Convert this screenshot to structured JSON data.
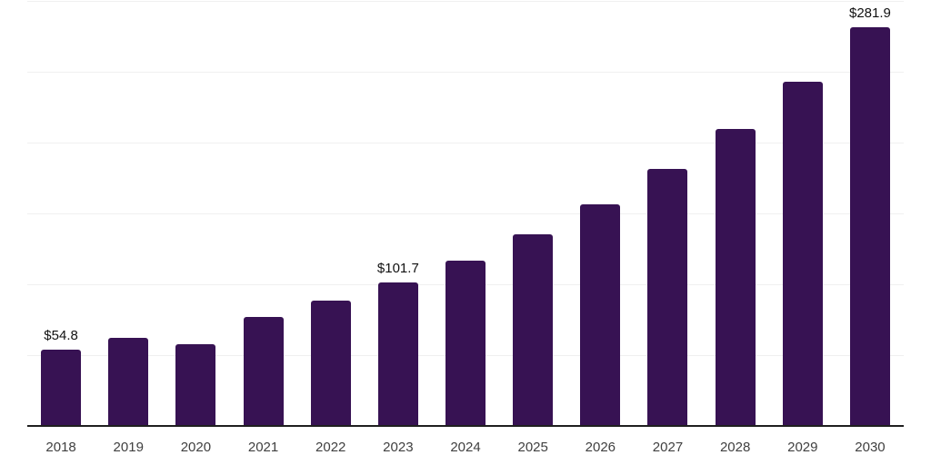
{
  "chart_data": {
    "type": "bar",
    "title": "",
    "xlabel": "",
    "ylabel": "",
    "categories": [
      "2018",
      "2019",
      "2020",
      "2021",
      "2022",
      "2023",
      "2024",
      "2025",
      "2026",
      "2027",
      "2028",
      "2029",
      "2030"
    ],
    "values": [
      54.8,
      63.0,
      58.1,
      77.3,
      89.0,
      101.7,
      117.6,
      136.1,
      157.4,
      182.1,
      210.6,
      243.6,
      281.9
    ],
    "data_labels": [
      {
        "category": "2018",
        "text": "$54.8"
      },
      {
        "category": "2023",
        "text": "$101.7"
      },
      {
        "category": "2030",
        "text": "$281.9"
      }
    ],
    "ylim": [
      0,
      300
    ],
    "gridline_step": 50,
    "grid": true,
    "legend": false,
    "y_axis_labels_visible": false,
    "colors": {
      "bar": "#371253",
      "axis": "#1f1f1f",
      "gridline": "#f0f0f0",
      "tick_label": "#404040",
      "value_label": "#111111",
      "background": "#ffffff"
    }
  }
}
